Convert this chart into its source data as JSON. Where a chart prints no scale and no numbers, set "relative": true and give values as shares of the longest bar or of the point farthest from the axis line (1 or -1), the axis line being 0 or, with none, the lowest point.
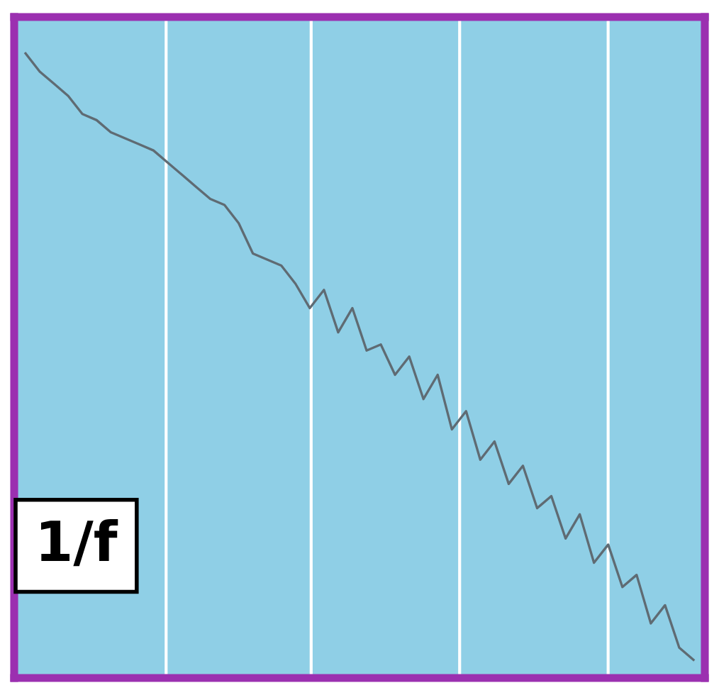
{
  "chart_data": {
    "type": "line",
    "relative": true,
    "categories": [
      null,
      null,
      null,
      null,
      null,
      null,
      null,
      null,
      null,
      null,
      null,
      null,
      null,
      null,
      null,
      null,
      null,
      null,
      null,
      null,
      null,
      null,
      null,
      null,
      null,
      null,
      null,
      null,
      null,
      null,
      null,
      null,
      null,
      null,
      null,
      null,
      null,
      null,
      null,
      null,
      null,
      null,
      null,
      null,
      null,
      null,
      null,
      null
    ],
    "series": [
      {
        "color": "#5f6b73",
        "values": [
          1.0,
          0.97,
          0.95,
          0.93,
          0.9,
          0.89,
          0.87,
          0.86,
          0.85,
          0.84,
          0.82,
          0.8,
          0.78,
          0.76,
          0.75,
          0.72,
          0.67,
          0.66,
          0.65,
          0.62,
          0.58,
          0.61,
          0.54,
          0.58,
          0.51,
          0.52,
          0.47,
          0.5,
          0.43,
          0.47,
          0.38,
          0.41,
          0.33,
          0.36,
          0.29,
          0.32,
          0.25,
          0.27,
          0.2,
          0.24,
          0.16,
          0.19,
          0.12,
          0.14,
          0.06,
          0.09,
          0.02,
          0
        ]
      }
    ],
    "grid": "x",
    "annotations": [
      "1/f"
    ]
  }
}
